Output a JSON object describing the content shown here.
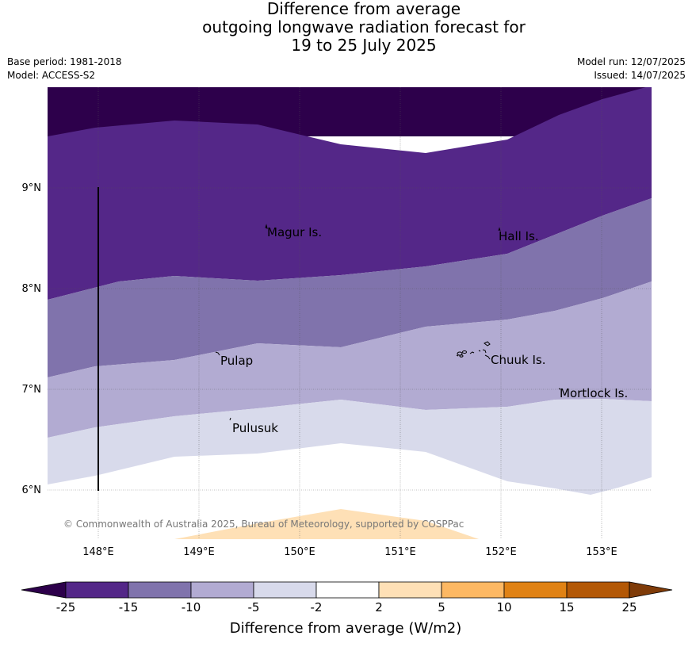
{
  "title": {
    "line1": "Difference from average",
    "line2": "outgoing longwave radiation forecast for",
    "line3": "19 to 25 July 2025"
  },
  "meta": {
    "base_period": "Base period: 1981-2018",
    "model": "Model: ACCESS-S2",
    "model_run": "Model run: 12/07/2025",
    "issued": "Issued: 14/07/2025"
  },
  "map": {
    "lon_range": [
      147.5,
      153.5
    ],
    "lat_range": [
      5.5,
      10.0
    ],
    "lat_ticks": [
      "9°N",
      "8°N",
      "7°N",
      "6°N"
    ],
    "lon_ticks": [
      "148°E",
      "149°E",
      "150°E",
      "151°E",
      "152°E",
      "153°E"
    ],
    "places": [
      "Magur Is.",
      "Hall Is.",
      "Pulap",
      "Chuuk Is.",
      "Mortlock Is.",
      "Pulusuk"
    ],
    "copyright": "© Commonwealth of Australia 2025, Bureau of Meteorology, supported by COSPPac"
  },
  "colorbar": {
    "title": "Difference from average (W/m2)",
    "labels": [
      "-25",
      "-15",
      "-10",
      "-5",
      "-2",
      "2",
      "5",
      "10",
      "15",
      "25"
    ],
    "colors": [
      "#2d004b",
      "#542788",
      "#8073ac",
      "#b2abd2",
      "#d8daeb",
      "#ffffff",
      "#fee0b6",
      "#fdb863",
      "#e08214",
      "#b35806",
      "#7f3b08"
    ]
  }
}
